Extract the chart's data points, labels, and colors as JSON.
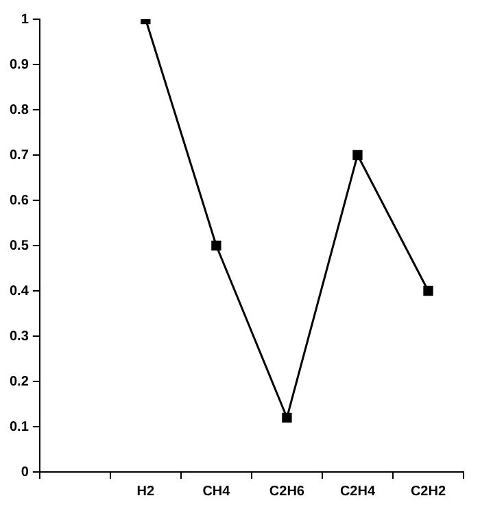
{
  "chart_data": {
    "type": "line",
    "categories": [
      null,
      "H2",
      "CH4",
      "C2H6",
      "C2H4",
      "C2H2"
    ],
    "values": [
      null,
      1,
      0.5,
      0.12,
      0.7,
      0.4
    ],
    "color": "#000000",
    "marker": "square",
    "line_style": "solid",
    "ylim": [
      0,
      1
    ],
    "yticks": [
      0,
      0.1,
      0.2,
      0.3,
      0.4,
      0.5,
      0.6,
      0.7,
      0.8,
      0.9,
      1
    ]
  }
}
